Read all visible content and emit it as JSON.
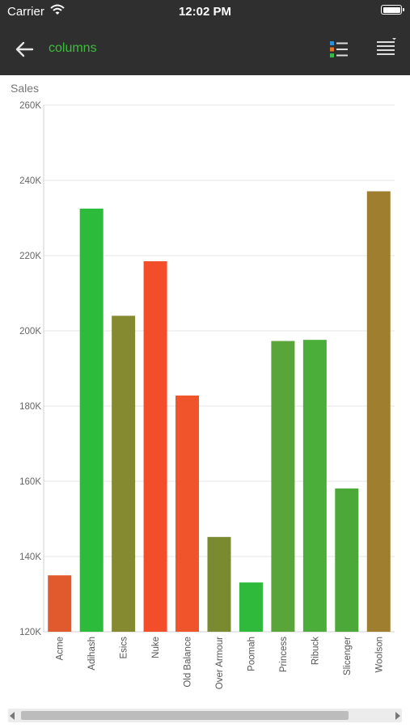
{
  "status_bar": {
    "carrier": "Carrier",
    "time": "12:02 PM"
  },
  "nav": {
    "title": "columns",
    "title_color": "#3dbd3d",
    "background": "#2f2f2f"
  },
  "chart_data": {
    "type": "bar",
    "ylabel": "Sales",
    "ylim": [
      120000,
      260000
    ],
    "ytick_values": [
      120000,
      140000,
      160000,
      180000,
      200000,
      220000,
      240000,
      260000
    ],
    "ytick_labels": [
      "120K",
      "140K",
      "160K",
      "180K",
      "200K",
      "220K",
      "240K",
      "260K"
    ],
    "grid": true,
    "categories": [
      "Acme",
      "Adihash",
      "Esics",
      "Nuke",
      "Old Balance",
      "Over Armour",
      "Poomah",
      "Princess",
      "Ribuck",
      "Slicenger",
      "Woolson"
    ],
    "values": [
      135000,
      232500,
      204000,
      218500,
      182800,
      145200,
      133100,
      197300,
      197600,
      158100,
      237100
    ],
    "colors": [
      "#e05a2e",
      "#2dbb3c",
      "#858a31",
      "#f24e2a",
      "#f0542b",
      "#7a8a31",
      "#2fba3b",
      "#5aa53a",
      "#4bae3a",
      "#4ca838",
      "#a07e30"
    ]
  }
}
